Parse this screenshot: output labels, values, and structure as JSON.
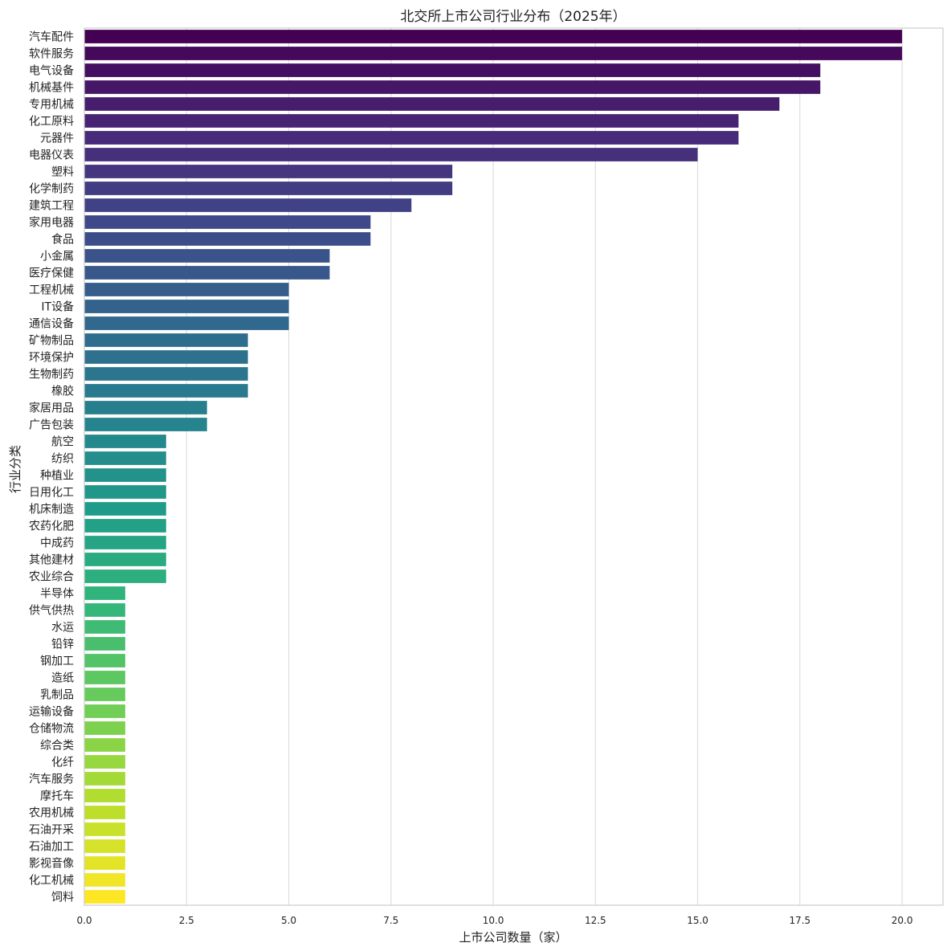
{
  "chart_data": {
    "type": "bar",
    "orientation": "horizontal",
    "title": "北交所上市公司行业分布（2025年）",
    "xlabel": "上市公司数量（家）",
    "ylabel": "行业分类",
    "xlim": [
      0,
      21
    ],
    "xticks": [
      "0.0",
      "2.5",
      "5.0",
      "7.5",
      "10.0",
      "12.5",
      "15.0",
      "17.5",
      "20.0"
    ],
    "grid": "vertical",
    "colormap": "viridis",
    "categories": [
      "汽车配件",
      "软件服务",
      "电气设备",
      "机械基件",
      "专用机械",
      "化工原料",
      "元器件",
      "电器仪表",
      "塑料",
      "化学制药",
      "建筑工程",
      "家用电器",
      "食品",
      "小金属",
      "医疗保健",
      "工程机械",
      "IT设备",
      "通信设备",
      "矿物制品",
      "环境保护",
      "生物制药",
      "橡胶",
      "家居用品",
      "广告包装",
      "航空",
      "纺织",
      "种植业",
      "日用化工",
      "机床制造",
      "农药化肥",
      "中成药",
      "其他建材",
      "农业综合",
      "半导体",
      "供气供热",
      "水运",
      "铅锌",
      "钢加工",
      "造纸",
      "乳制品",
      "运输设备",
      "仓储物流",
      "综合类",
      "化纤",
      "汽车服务",
      "摩托车",
      "农用机械",
      "石油开采",
      "石油加工",
      "影视音像",
      "化工机械",
      "饲料"
    ],
    "values": [
      20,
      20,
      18,
      18,
      17,
      16,
      16,
      15,
      9,
      9,
      8,
      7,
      7,
      6,
      6,
      5,
      5,
      5,
      4,
      4,
      4,
      4,
      3,
      3,
      2,
      2,
      2,
      2,
      2,
      2,
      2,
      2,
      2,
      1,
      1,
      1,
      1,
      1,
      1,
      1,
      1,
      1,
      1,
      1,
      1,
      1,
      1,
      1,
      1,
      1,
      1,
      1
    ]
  }
}
